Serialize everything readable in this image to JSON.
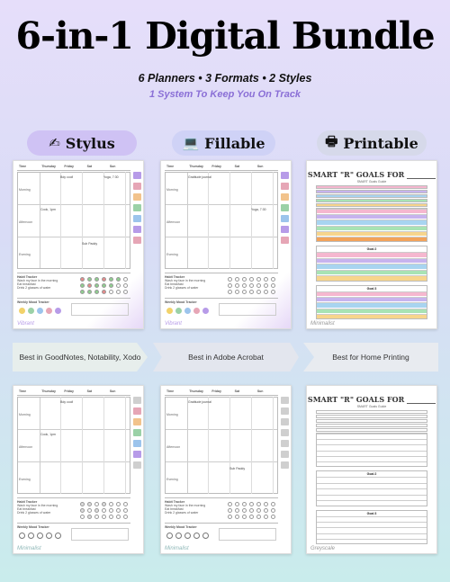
{
  "header": {
    "title": "6-in-1 Digital Bundle",
    "subtitle": "6 Planners • 3 Formats • 2 Styles",
    "tagline": "1 System To Keep You On Track"
  },
  "formats": [
    {
      "label": "Stylus",
      "icon": "pencil-icon",
      "glyph": "✍"
    },
    {
      "label": "Fillable",
      "icon": "laptop-icon",
      "glyph": "💻"
    },
    {
      "label": "Printable",
      "icon": "printer-icon",
      "glyph": "🖶"
    }
  ],
  "captions": [
    "Best in GoodNotes, Notability, Xodo",
    "Best in Adobe Acrobat",
    "Best for Home Printing"
  ],
  "cards": {
    "top_left": "Vibrant",
    "top_middle": "Vibrant",
    "top_right": "Minimalist",
    "bottom_left": "Minimalist",
    "bottom_middle": "Minimalist",
    "bottom_right": "Greyscale"
  },
  "planner": {
    "columns": [
      "Time",
      "Thursday",
      "Friday",
      "Sat",
      "Sun"
    ],
    "rows": [
      "Morning",
      "Afternoon",
      "Evening"
    ],
    "habit_title": "Habit Tracker",
    "habits": [
      "Wash my face in the morning",
      "Eat breakfast",
      "Drink 2 glasses of water"
    ],
    "mood_title": "Weekly Mood Tracker",
    "notes": [
      "Bdy cool!",
      "Yoga, 7:30",
      "Cook, 1pm",
      "Sub Paddy",
      "Gratitude journal"
    ]
  },
  "goals": {
    "title": "SMART \"R\" GOALS FOR ________",
    "subtitle": "SMART Goals Guide",
    "box2": "Goal 2",
    "box3": "Goal 3"
  },
  "colors": {
    "accent": "#8a6fd6",
    "stylus_pill": "#cfc2f4",
    "fillable_pill": "#cfd2f6",
    "printable_pill": "#d6d9ea"
  }
}
